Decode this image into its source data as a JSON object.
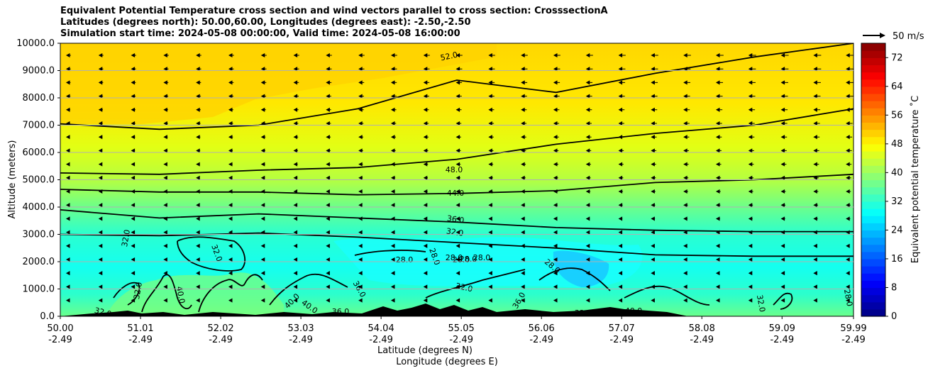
{
  "title": {
    "line1": "Equivalent Potential Temperature cross section and wind vectors parallel to cross section: CrosssectionA",
    "line2": "Latitudes (degrees north): 50.00,60.00, Longitudes (degrees east): -2.50,-2.50",
    "line3": "Simulation start time: 2024-05-08 00:00:00, Valid time: 2024-05-08 16:00:00"
  },
  "wind_key": {
    "label": "50 m/s"
  },
  "colorbar": {
    "label": "Equivalent potential temperature ˚C",
    "ticks": [
      "0",
      "8",
      "16",
      "24",
      "32",
      "40",
      "48",
      "56",
      "64",
      "72"
    ]
  },
  "chart_data": {
    "type": "contour",
    "title": "Equivalent Potential Temperature cross section and wind vectors parallel to cross section: CrosssectionA",
    "ylabel": "Altitude (meters)",
    "xlabel_lat": "Latitude (degrees N)",
    "xlabel_lon": "Longitude (degrees E)",
    "ylim": [
      0,
      10000
    ],
    "xlim": [
      50.0,
      59.99
    ],
    "yticks": [
      "10000.0",
      "9000.0",
      "8000.0",
      "7000.0",
      "6000.0",
      "5000.0",
      "4000.0",
      "3000.0",
      "2000.0",
      "1000.0",
      "0.0"
    ],
    "ytick_values": [
      10000,
      9000,
      8000,
      7000,
      6000,
      5000,
      4000,
      3000,
      2000,
      1000,
      0
    ],
    "xticks_lat": [
      "50.00",
      "51.01",
      "52.02",
      "53.03",
      "54.04",
      "55.05",
      "56.06",
      "57.07",
      "58.08",
      "59.09",
      "59.99"
    ],
    "xtick_values": [
      50.0,
      51.01,
      52.02,
      53.03,
      54.04,
      55.05,
      56.06,
      57.07,
      58.08,
      59.09,
      59.99
    ],
    "xticks_lon": [
      "-2.49",
      "-2.49",
      "-2.49",
      "-2.49",
      "-2.49",
      "-2.49",
      "-2.49",
      "-2.49",
      "-2.49",
      "-2.49",
      "-2.49"
    ],
    "colorbar_range": [
      0,
      76
    ],
    "grid": "horizontal",
    "contour_labels": [
      "52.0",
      "48.0",
      "44.0",
      "36.0",
      "32.0",
      "28.0",
      "28.0",
      "28.0",
      "28.0",
      "28.0",
      "28.0",
      "32.0",
      "32.0",
      "32.0",
      "32.0",
      "40.0",
      "40.0",
      "40.0",
      "36.0",
      "36.0",
      "36.0",
      "28.0",
      "32.0",
      "32.0",
      "32.0",
      "40.0",
      "28.0"
    ],
    "contour_levels": [
      {
        "level": 52,
        "label": "52.0",
        "altitude_m": [
          7050,
          6850,
          7000,
          7600,
          8650,
          8200,
          8900,
          9500,
          10000
        ]
      },
      {
        "level": 48,
        "label": "48.0",
        "altitude_m": [
          5250,
          5200,
          5350,
          5450,
          5750,
          6300,
          6700,
          7000,
          7600
        ]
      },
      {
        "level": 44,
        "label": "44.0",
        "altitude_m": [
          4650,
          4550,
          4550,
          4450,
          4500,
          4600,
          4900,
          5000,
          5200
        ]
      },
      {
        "level": 36,
        "label": "36.0",
        "altitude_m": [
          3900,
          3600,
          3750,
          3600,
          3450,
          3250,
          3150,
          3100,
          3100
        ]
      },
      {
        "level": 32,
        "label": "32.0",
        "altitude_m": [
          3000,
          2950,
          3050,
          2900,
          2700,
          2500,
          2250,
          2200,
          2200
        ]
      }
    ],
    "wind_key_speed": 50,
    "wind_key_units": "m/s"
  }
}
